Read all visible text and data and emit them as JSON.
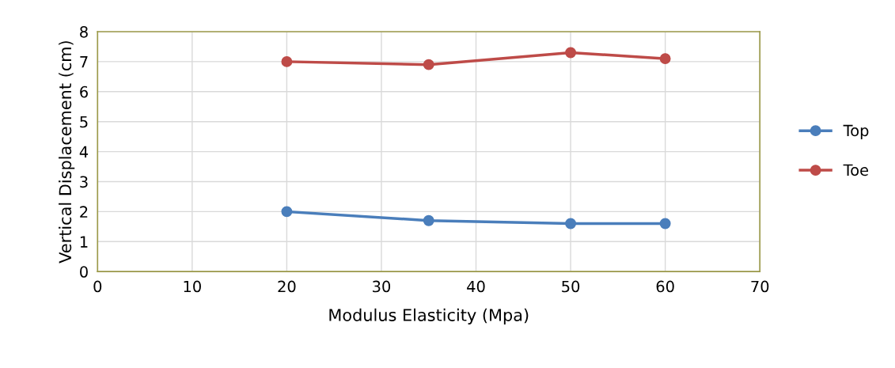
{
  "chart_data": {
    "type": "line",
    "xlabel": "Modulus Elasticity (Mpa)",
    "ylabel": "Vertical Displacement (cm)",
    "x": [
      20,
      35,
      50,
      60
    ],
    "series": [
      {
        "name": "Top",
        "color": "#4a7ebb",
        "values": [
          2.0,
          1.7,
          1.6,
          1.6
        ]
      },
      {
        "name": "Toe",
        "color": "#be4b48",
        "values": [
          7.0,
          6.9,
          7.3,
          7.1
        ]
      }
    ],
    "xlim": [
      0,
      70
    ],
    "xticks": [
      0,
      10,
      20,
      30,
      40,
      50,
      60,
      70
    ],
    "ylim": [
      0,
      8
    ],
    "yticks": [
      0,
      1,
      2,
      3,
      4,
      5,
      6,
      7,
      8
    ],
    "grid": true,
    "legend": "right",
    "marker": "circle",
    "line_style": "solid"
  }
}
